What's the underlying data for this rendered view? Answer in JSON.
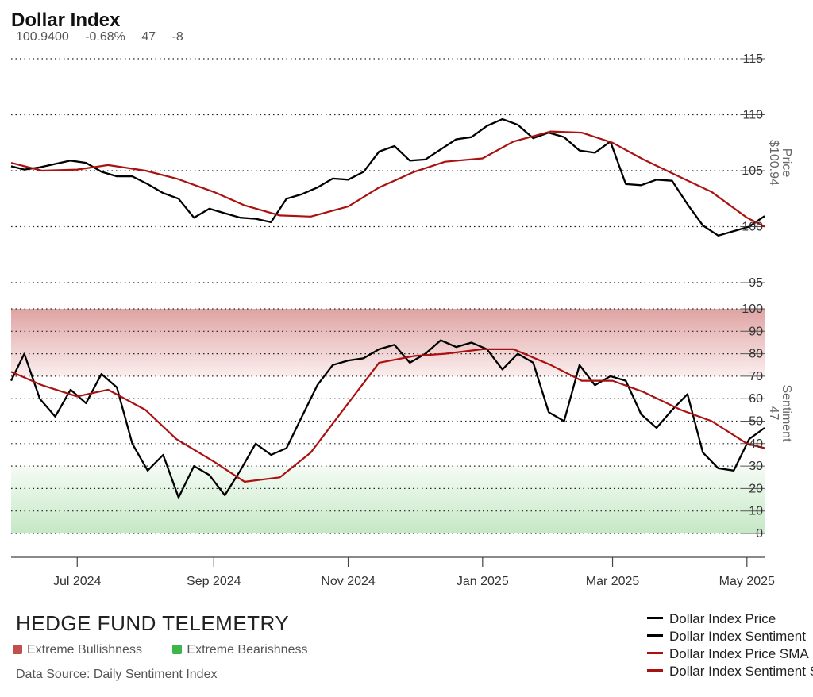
{
  "header": {
    "title": "Dollar Index",
    "price": "100.9400",
    "change": "-0.68%",
    "sentiment": "47",
    "sentiment_change": "-8"
  },
  "footer": {
    "brand": "HEDGE FUND TELEMETRY",
    "extreme_bullish_label": "Extreme Bullishness",
    "extreme_bearish_label": "Extreme Bearishness",
    "source": "Data Source: Daily Sentiment Index"
  },
  "legend": [
    {
      "label": "Dollar Index Price",
      "color": "#000000"
    },
    {
      "label": "Dollar Index Sentiment",
      "color": "#000000"
    },
    {
      "label": "Dollar Index Price SMA",
      "color": "#aa1111"
    },
    {
      "label": "Dollar Index Sentiment SMA",
      "color": "#aa1111"
    }
  ],
  "colors": {
    "price": "#000000",
    "sma": "#aa1111",
    "bullish": "#c0504d",
    "bearish": "#3cb54a"
  },
  "chart_data": [
    {
      "type": "line",
      "ylabel": "Price",
      "last_label": "$100.94",
      "ylim": [
        95,
        115
      ],
      "yticks": [
        "115",
        "110",
        "105",
        "100",
        "95"
      ],
      "xlim": [
        "2024-06-01",
        "2025-05-09"
      ],
      "grid": true,
      "series": [
        {
          "name": "Dollar Index Price",
          "x": [
            "2024-06-01",
            "2024-06-07",
            "2024-06-14",
            "2024-06-21",
            "2024-06-28",
            "2024-07-05",
            "2024-07-12",
            "2024-07-19",
            "2024-07-26",
            "2024-08-02",
            "2024-08-09",
            "2024-08-16",
            "2024-08-23",
            "2024-08-30",
            "2024-09-06",
            "2024-09-13",
            "2024-09-20",
            "2024-09-27",
            "2024-10-04",
            "2024-10-11",
            "2024-10-18",
            "2024-10-25",
            "2024-11-01",
            "2024-11-08",
            "2024-11-15",
            "2024-11-22",
            "2024-11-29",
            "2024-12-06",
            "2024-12-13",
            "2024-12-20",
            "2024-12-27",
            "2025-01-03",
            "2025-01-10",
            "2025-01-17",
            "2025-01-24",
            "2025-01-31",
            "2025-02-07",
            "2025-02-14",
            "2025-02-21",
            "2025-02-28",
            "2025-03-07",
            "2025-03-14",
            "2025-03-21",
            "2025-03-28",
            "2025-04-04",
            "2025-04-11",
            "2025-04-18",
            "2025-04-25",
            "2025-05-02",
            "2025-05-09"
          ],
          "values": [
            105.4,
            105.1,
            105.3,
            105.6,
            105.9,
            105.7,
            104.9,
            104.5,
            104.5,
            103.8,
            103.0,
            102.5,
            100.8,
            101.6,
            101.2,
            100.8,
            100.7,
            100.4,
            102.5,
            102.9,
            103.5,
            104.3,
            104.2,
            104.9,
            106.7,
            107.2,
            105.9,
            106.0,
            106.9,
            107.8,
            108.0,
            109.0,
            109.6,
            109.1,
            107.9,
            108.4,
            108.0,
            106.8,
            106.6,
            107.6,
            103.8,
            103.7,
            104.2,
            104.1,
            102.0,
            100.1,
            99.2,
            99.6,
            100.0,
            100.94
          ]
        },
        {
          "name": "Dollar Index Price SMA",
          "x": [
            "2024-06-01",
            "2024-06-15",
            "2024-07-01",
            "2024-07-15",
            "2024-08-01",
            "2024-08-15",
            "2024-09-01",
            "2024-09-15",
            "2024-10-01",
            "2024-10-15",
            "2024-11-01",
            "2024-11-15",
            "2024-12-01",
            "2024-12-15",
            "2025-01-01",
            "2025-01-15",
            "2025-02-01",
            "2025-02-15",
            "2025-03-01",
            "2025-03-15",
            "2025-04-01",
            "2025-04-15",
            "2025-05-01",
            "2025-05-09"
          ],
          "values": [
            105.7,
            105.0,
            105.1,
            105.5,
            105.0,
            104.3,
            103.1,
            101.9,
            101.0,
            100.9,
            101.8,
            103.5,
            104.9,
            105.8,
            106.1,
            107.6,
            108.5,
            108.4,
            107.5,
            106.0,
            104.4,
            103.1,
            100.8,
            100.0
          ]
        }
      ]
    },
    {
      "type": "line",
      "ylabel": "Sentiment",
      "last_label": "47",
      "ylim": [
        0,
        100
      ],
      "yticks": [
        "100",
        "90",
        "80",
        "70",
        "60",
        "50",
        "40",
        "30",
        "20",
        "10",
        "0"
      ],
      "xlim": [
        "2024-06-01",
        "2025-05-09"
      ],
      "grid": true,
      "zones": [
        {
          "name": "Extreme Bullishness",
          "range": [
            70,
            100
          ]
        },
        {
          "name": "Extreme Bearishness",
          "range": [
            0,
            30
          ]
        }
      ],
      "xticks": [
        "Jul 2024",
        "Sep 2024",
        "Nov 2024",
        "Jan 2025",
        "Mar 2025",
        "May 2025"
      ],
      "xtick_dates": [
        "2024-07-01",
        "2024-09-01",
        "2024-11-01",
        "2025-01-01",
        "2025-03-01",
        "2025-05-01"
      ],
      "series": [
        {
          "name": "Dollar Index Sentiment",
          "x": [
            "2024-06-01",
            "2024-06-07",
            "2024-06-14",
            "2024-06-21",
            "2024-06-28",
            "2024-07-05",
            "2024-07-12",
            "2024-07-19",
            "2024-07-26",
            "2024-08-02",
            "2024-08-09",
            "2024-08-16",
            "2024-08-23",
            "2024-08-30",
            "2024-09-06",
            "2024-09-13",
            "2024-09-20",
            "2024-09-27",
            "2024-10-04",
            "2024-10-11",
            "2024-10-18",
            "2024-10-25",
            "2024-11-01",
            "2024-11-08",
            "2024-11-15",
            "2024-11-22",
            "2024-11-29",
            "2024-12-06",
            "2024-12-13",
            "2024-12-20",
            "2024-12-27",
            "2025-01-03",
            "2025-01-10",
            "2025-01-17",
            "2025-01-24",
            "2025-01-31",
            "2025-02-07",
            "2025-02-14",
            "2025-02-21",
            "2025-02-28",
            "2025-03-07",
            "2025-03-14",
            "2025-03-21",
            "2025-03-28",
            "2025-04-04",
            "2025-04-11",
            "2025-04-18",
            "2025-04-25",
            "2025-05-02",
            "2025-05-09"
          ],
          "values": [
            68,
            80,
            60,
            52,
            64,
            58,
            71,
            65,
            40,
            28,
            35,
            16,
            30,
            26,
            17,
            28,
            40,
            35,
            38,
            52,
            66,
            75,
            77,
            78,
            82,
            84,
            76,
            80,
            86,
            83,
            85,
            82,
            73,
            80,
            76,
            54,
            50,
            75,
            66,
            70,
            68,
            53,
            47,
            55,
            62,
            36,
            29,
            28,
            42,
            47
          ]
        },
        {
          "name": "Dollar Index Sentiment SMA",
          "x": [
            "2024-06-01",
            "2024-06-15",
            "2024-07-01",
            "2024-07-15",
            "2024-08-01",
            "2024-08-15",
            "2024-09-01",
            "2024-09-15",
            "2024-10-01",
            "2024-10-15",
            "2024-11-01",
            "2024-11-15",
            "2024-12-01",
            "2024-12-15",
            "2025-01-01",
            "2025-01-15",
            "2025-02-01",
            "2025-02-15",
            "2025-03-01",
            "2025-03-15",
            "2025-04-01",
            "2025-04-15",
            "2025-05-01",
            "2025-05-09"
          ],
          "values": [
            72,
            66,
            61,
            64,
            55,
            42,
            32,
            23,
            25,
            36,
            58,
            76,
            79,
            80,
            82,
            82,
            75,
            68,
            68,
            63,
            55,
            50,
            40,
            38
          ]
        }
      ]
    }
  ]
}
